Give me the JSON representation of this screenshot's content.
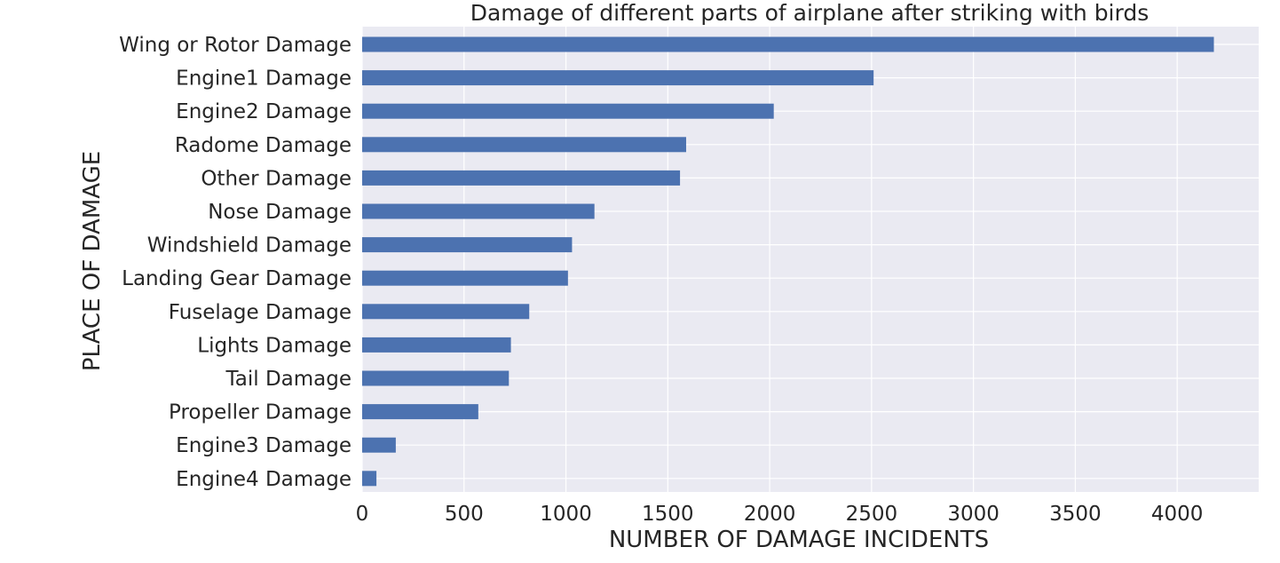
{
  "chart_data": {
    "type": "bar",
    "orientation": "horizontal",
    "title": "Damage of different parts of airplane after striking with birds",
    "xlabel": "NUMBER OF DAMAGE INCIDENTS",
    "ylabel": "PLACE OF DAMAGE",
    "categories": [
      "Wing or Rotor Damage",
      "Engine1 Damage",
      "Engine2 Damage",
      "Radome Damage",
      "Other Damage",
      "Nose Damage",
      "Windshield Damage",
      "Landing Gear Damage",
      "Fuselage Damage",
      "Lights Damage",
      "Tail Damage",
      "Propeller Damage",
      "Engine3 Damage",
      "Engine4 Damage"
    ],
    "values": [
      4180,
      2510,
      2020,
      1590,
      1560,
      1140,
      1030,
      1010,
      820,
      730,
      720,
      570,
      165,
      70
    ],
    "xlim": [
      0,
      4400
    ],
    "xticks": [
      0,
      500,
      1000,
      1500,
      2000,
      2500,
      3000,
      3500,
      4000
    ],
    "grid": true,
    "colors": {
      "bar": "#4c72b0",
      "plot_background": "#eaeaf2",
      "grid": "#ffffff"
    }
  }
}
